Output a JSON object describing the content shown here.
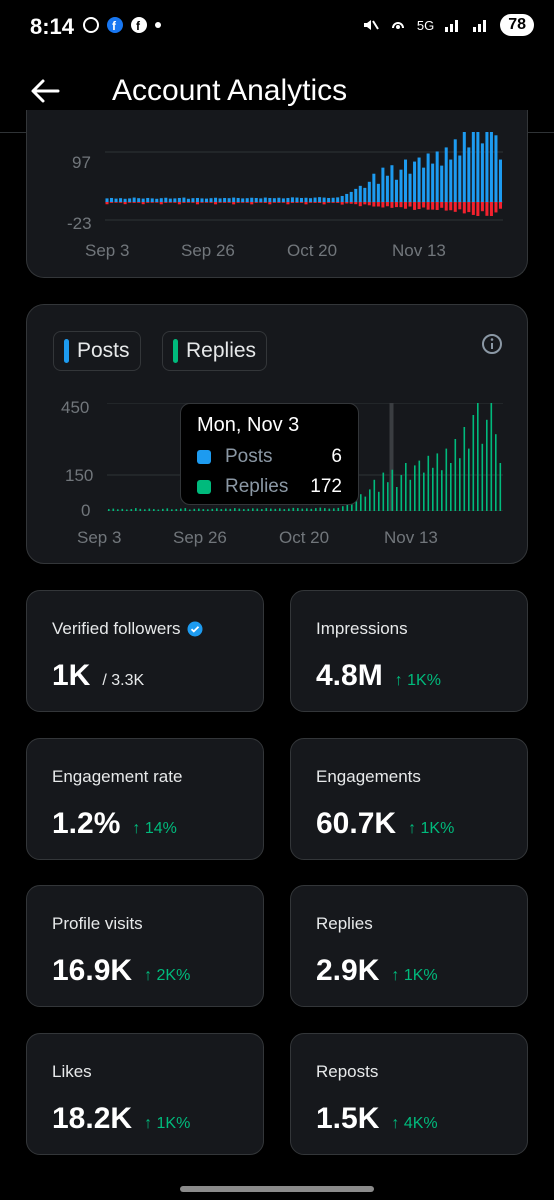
{
  "status": {
    "time": "8:14",
    "network": "5G",
    "battery": "78"
  },
  "header": {
    "title": "Account Analytics"
  },
  "top_chart": {
    "y_ticks": [
      "97",
      "-23"
    ],
    "x_ticks": [
      "Sep 3",
      "Sep 26",
      "Oct 20",
      "Nov 13"
    ],
    "colors": {
      "positive": "#1d9bf0",
      "negative": "#f4212e"
    }
  },
  "second_chart": {
    "tabs": [
      {
        "label": "Posts",
        "color": "#1d9bf0"
      },
      {
        "label": "Replies",
        "color": "#00ba7c"
      }
    ],
    "y_ticks": [
      "450",
      "150",
      "0"
    ],
    "x_ticks": [
      "Sep 3",
      "Sep 26",
      "Oct 20",
      "Nov 13"
    ],
    "tooltip": {
      "date": "Mon, Nov 3",
      "rows": [
        {
          "label": "Posts",
          "value": "6",
          "color": "#1d9bf0"
        },
        {
          "label": "Replies",
          "value": "172",
          "color": "#00ba7c"
        }
      ]
    }
  },
  "chart_data": {
    "type": "bar",
    "title": "",
    "series": [
      {
        "name": "Replies",
        "values": [
          8,
          10,
          7,
          9,
          6,
          8,
          12,
          9,
          7,
          10,
          8,
          6,
          9,
          11,
          7,
          8,
          10,
          12,
          6,
          9,
          10,
          8,
          7,
          9,
          11,
          8,
          10,
          9,
          12,
          10,
          8,
          9,
          11,
          10,
          8,
          12,
          10,
          9,
          11,
          8,
          10,
          13,
          12,
          10,
          11,
          9,
          12,
          14,
          12,
          10,
          11,
          13,
          20,
          30,
          40,
          55,
          70,
          60,
          90,
          130,
          80,
          160,
          120,
          172,
          100,
          150,
          200,
          130,
          190,
          210,
          160,
          230,
          180,
          240,
          170,
          260,
          200,
          300,
          220,
          350,
          260,
          400,
          450,
          280,
          380,
          450,
          320,
          200
        ]
      }
    ],
    "ylim": [
      0,
      450
    ]
  },
  "stats": [
    {
      "label": "Verified followers",
      "value": "1K",
      "sub": "/ 3.3K",
      "verified": true
    },
    {
      "label": "Impressions",
      "value": "4.8M",
      "delta": "↑ 1K%"
    },
    {
      "label": "Engagement rate",
      "value": "1.2%",
      "delta": "↑ 14%"
    },
    {
      "label": "Engagements",
      "value": "60.7K",
      "delta": "↑ 1K%"
    },
    {
      "label": "Profile visits",
      "value": "16.9K",
      "delta": "↑ 2K%"
    },
    {
      "label": "Replies",
      "value": "2.9K",
      "delta": "↑ 1K%"
    },
    {
      "label": "Likes",
      "value": "18.2K",
      "delta": "↑ 1K%"
    },
    {
      "label": "Reposts",
      "value": "1.5K",
      "delta": "↑ 4K%"
    }
  ]
}
